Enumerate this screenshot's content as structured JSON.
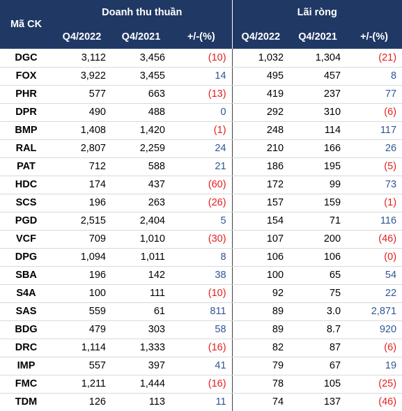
{
  "header": {
    "code": "Mã CK",
    "groups": [
      "Doanh thu thuần",
      "Lãi ròng"
    ],
    "subheaders": [
      "Q4/2022",
      "Q4/2021",
      "+/-(%)",
      "Q4/2022",
      "Q4/2021",
      "+/-(%)"
    ]
  },
  "styles": {
    "header_background": "#203864",
    "negative_color": "#e41e1e",
    "positive_color": "#2f5597"
  },
  "table": {
    "rows": [
      [
        "DGC",
        "3,112",
        "3,456",
        "(10)",
        "1,032",
        "1,304",
        "(21)"
      ],
      [
        "FOX",
        "3,922",
        "3,455",
        "14",
        "495",
        "457",
        "8"
      ],
      [
        "PHR",
        "577",
        "663",
        "(13)",
        "419",
        "237",
        "77"
      ],
      [
        "DPR",
        "490",
        "488",
        "0",
        "292",
        "310",
        "(6)"
      ],
      [
        "BMP",
        "1,408",
        "1,420",
        "(1)",
        "248",
        "114",
        "117"
      ],
      [
        "RAL",
        "2,807",
        "2,259",
        "24",
        "210",
        "166",
        "26"
      ],
      [
        "PAT",
        "712",
        "588",
        "21",
        "186",
        "195",
        "(5)"
      ],
      [
        "HDC",
        "174",
        "437",
        "(60)",
        "172",
        "99",
        "73"
      ],
      [
        "SCS",
        "196",
        "263",
        "(26)",
        "157",
        "159",
        "(1)"
      ],
      [
        "PGD",
        "2,515",
        "2,404",
        "5",
        "154",
        "71",
        "116"
      ],
      [
        "VCF",
        "709",
        "1,010",
        "(30)",
        "107",
        "200",
        "(46)"
      ],
      [
        "DPG",
        "1,094",
        "1,011",
        "8",
        "106",
        "106",
        "(0)"
      ],
      [
        "SBA",
        "196",
        "142",
        "38",
        "100",
        "65",
        "54"
      ],
      [
        "S4A",
        "100",
        "111",
        "(10)",
        "92",
        "75",
        "22"
      ],
      [
        "SAS",
        "559",
        "61",
        "811",
        "89",
        "3.0",
        "2,871"
      ],
      [
        "BDG",
        "479",
        "303",
        "58",
        "89",
        "8.7",
        "920"
      ],
      [
        "DRC",
        "1,114",
        "1,333",
        "(16)",
        "82",
        "87",
        "(6)"
      ],
      [
        "IMP",
        "557",
        "397",
        "41",
        "79",
        "67",
        "19"
      ],
      [
        "FMC",
        "1,211",
        "1,444",
        "(16)",
        "78",
        "105",
        "(25)"
      ],
      [
        "TDM",
        "126",
        "113",
        "11",
        "74",
        "137",
        "(46)"
      ]
    ]
  }
}
